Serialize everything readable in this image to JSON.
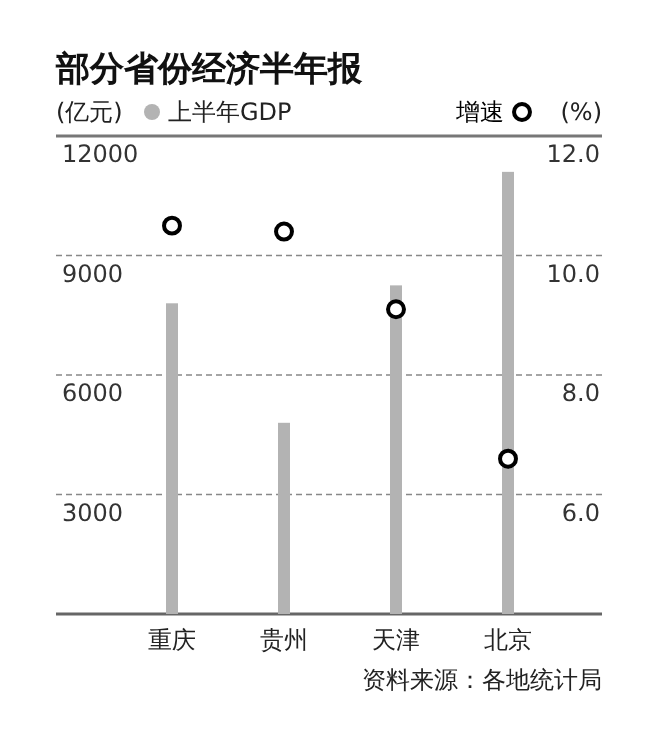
{
  "chart_data": {
    "type": "bar",
    "title": "部分省份经济半年报",
    "ylabel": "(亿元)",
    "y2label": "(%)",
    "categories": [
      "重庆",
      "贵州",
      "天津",
      "北京"
    ],
    "series": [
      {
        "name": "上半年GDP",
        "color": "#b3b3b3",
        "values": [
          7800,
          4800,
          8250,
          11100
        ]
      },
      {
        "name": "增速",
        "type": "scatter",
        "axis": "y2",
        "color": "#000000",
        "marker": "circle",
        "values": [
          10.5,
          10.4,
          9.1,
          6.6
        ]
      }
    ],
    "ylim": [
      0,
      12000
    ],
    "yticks": [
      {
        "value": 0,
        "label": null
      },
      3000,
      6000,
      9000,
      12000
    ],
    "y2lim": [
      4,
      12
    ],
    "y2ticks": [
      {
        "value": 6,
        "label": "6.0"
      },
      {
        "value": 8,
        "label": "8.0"
      },
      {
        "value": 10,
        "label": "10.0"
      },
      {
        "value": 12,
        "label": "12.0"
      }
    ],
    "grid": "y",
    "legend": "top",
    "annotations": [
      "资料来源：各地统计局"
    ]
  }
}
